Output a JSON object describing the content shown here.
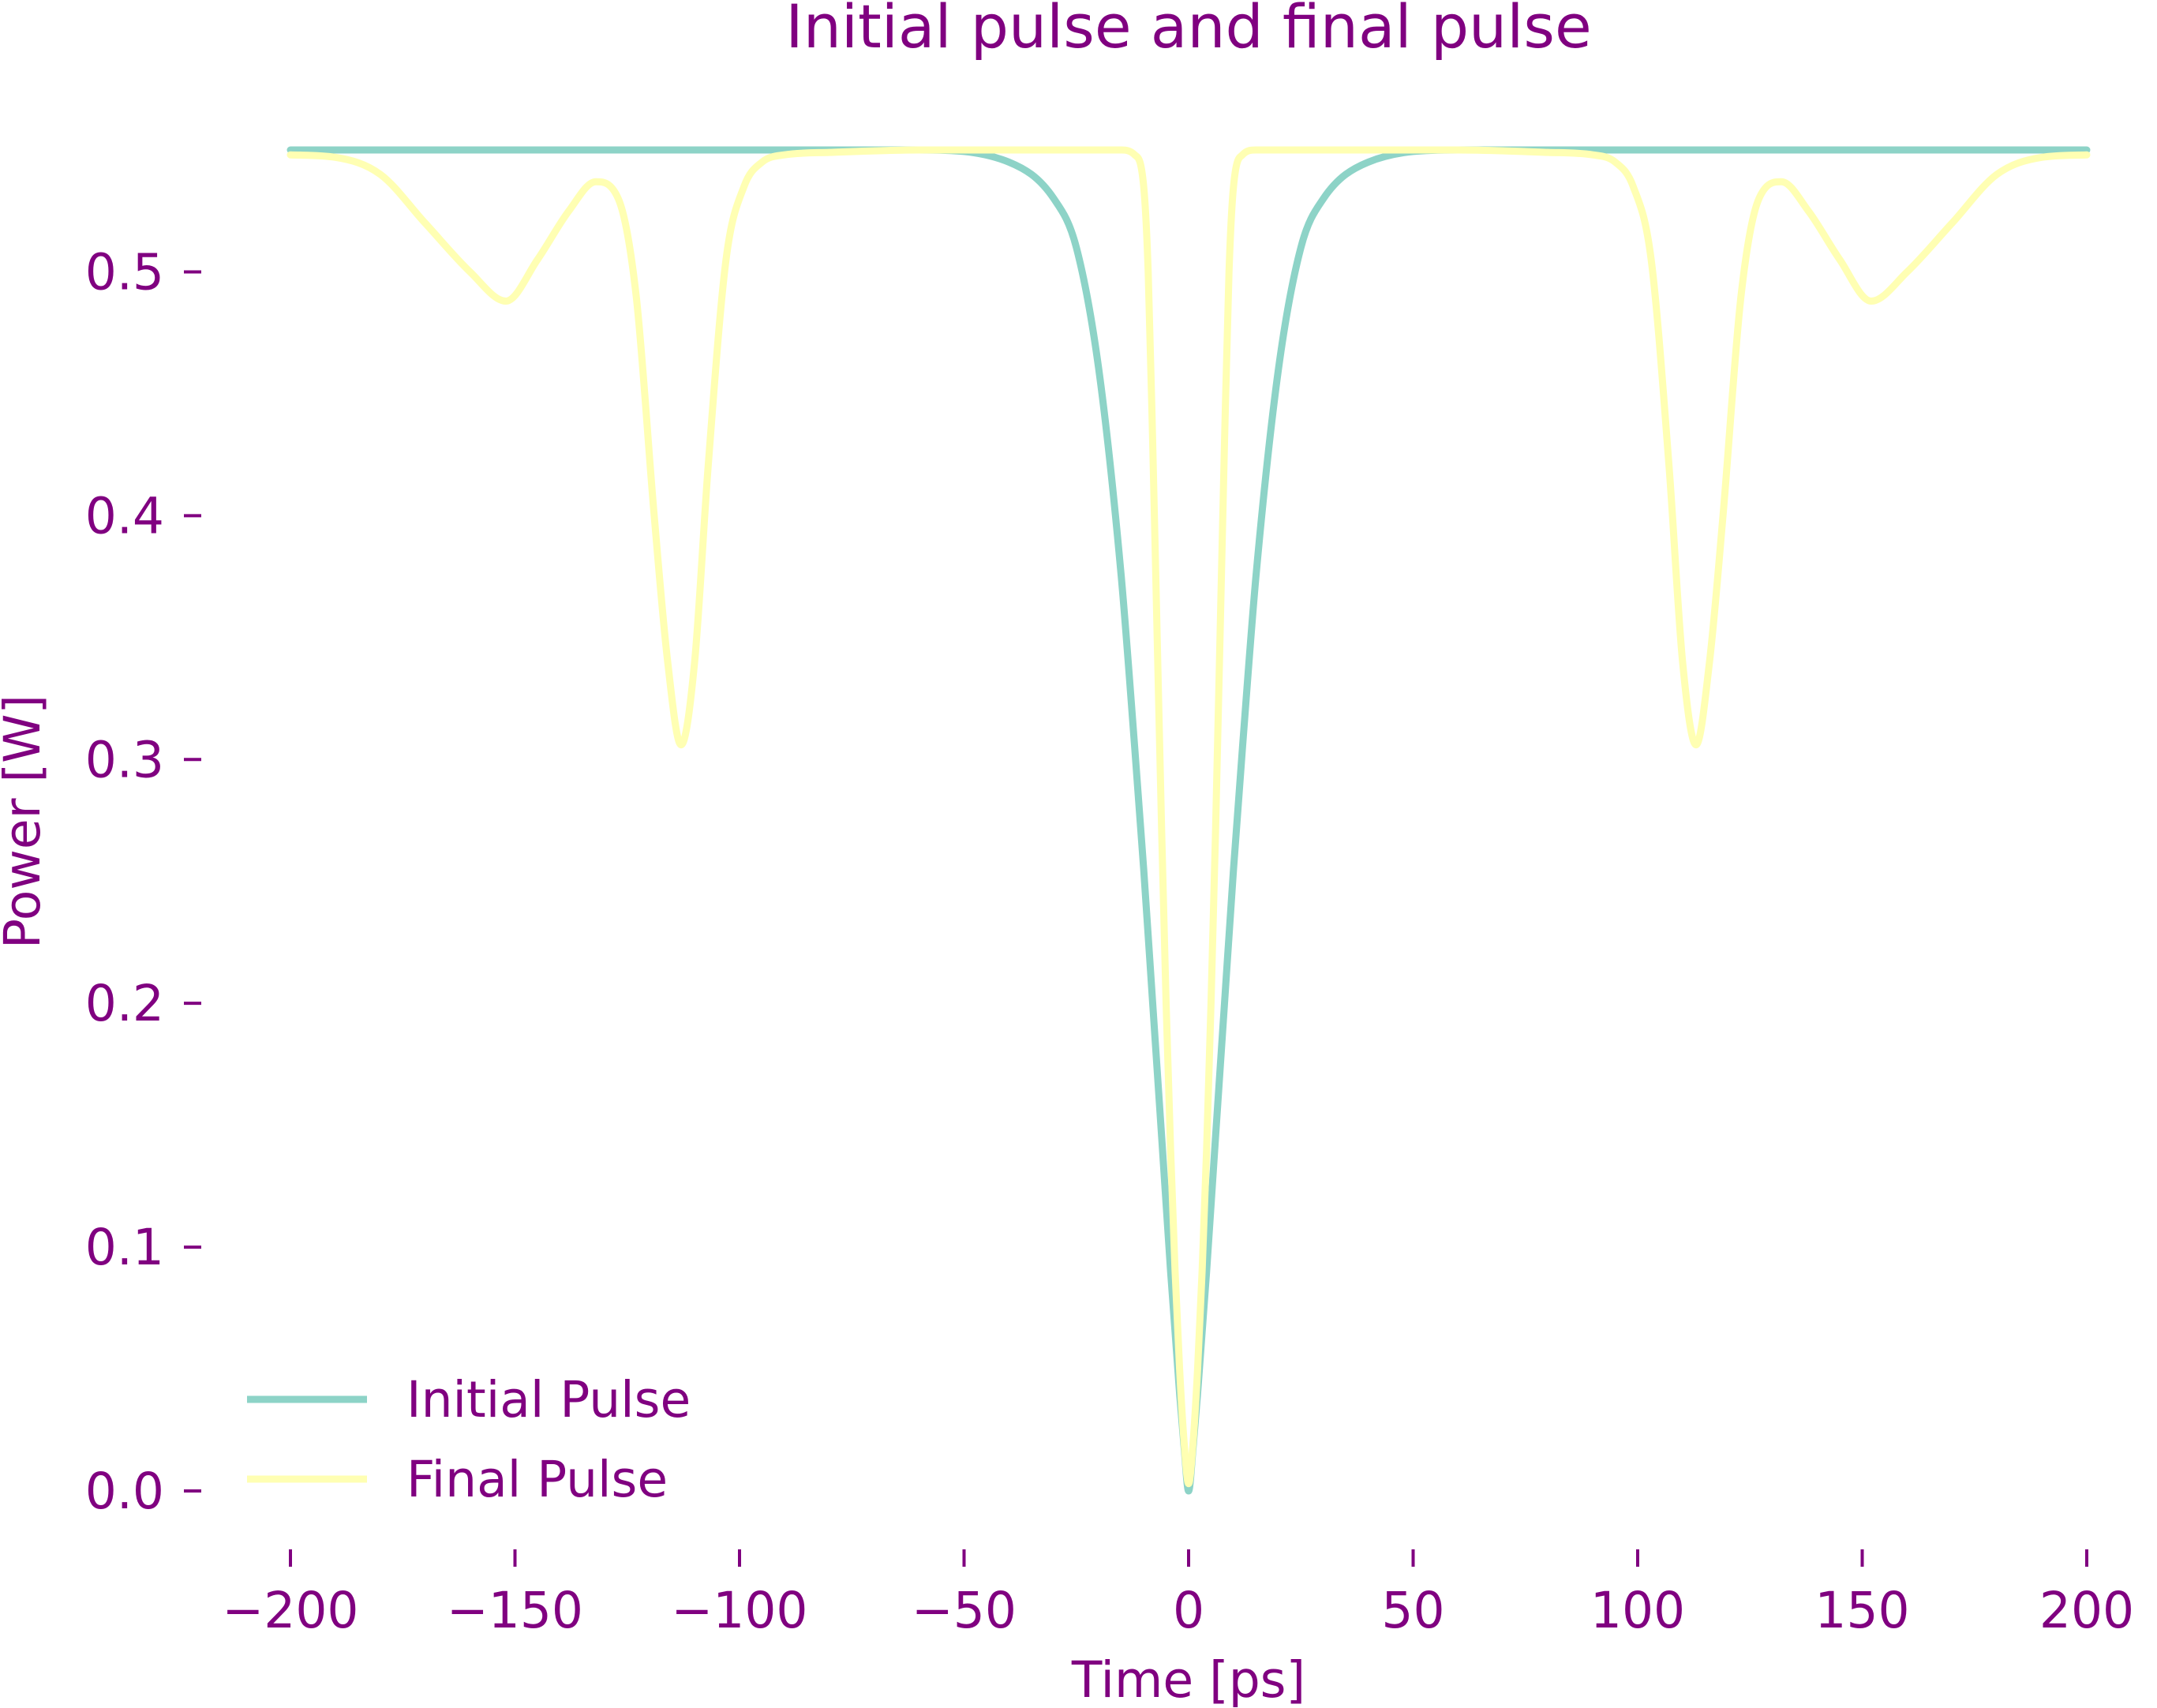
{
  "chart_data": {
    "type": "line",
    "title": "Initial pulse and final pulse",
    "xlabel": "Time [ps]",
    "ylabel": "Power [W]",
    "xlim": [
      -200,
      200
    ],
    "ylim": [
      0.0,
      0.55
    ],
    "x_ticks": [
      -200,
      -150,
      -100,
      -50,
      0,
      50,
      100,
      150,
      200
    ],
    "x_tick_labels": [
      "−200",
      "−150",
      "−100",
      "−50",
      "0",
      "50",
      "100",
      "150",
      "200"
    ],
    "y_ticks": [
      0.0,
      0.1,
      0.2,
      0.3,
      0.4,
      0.5
    ],
    "y_tick_labels": [
      "0.0",
      "0.1",
      "0.2",
      "0.3",
      "0.4",
      "0.5"
    ],
    "grid": false,
    "legend_position": "lower-left",
    "text_color": "#800080",
    "series": [
      {
        "name": "Initial Pulse",
        "color": "#8dd3c7",
        "x": [
          -200,
          -100,
          -60,
          -40,
          -30,
          -25,
          -20,
          -15,
          -12,
          -10,
          -8,
          -6,
          -4,
          -2,
          -1,
          0,
          1,
          2,
          4,
          6,
          8,
          10,
          12,
          15,
          20,
          25,
          30,
          40,
          60,
          100,
          200
        ],
        "y": [
          0.55,
          0.55,
          0.55,
          0.545,
          0.53,
          0.51,
          0.46,
          0.375,
          0.305,
          0.255,
          0.2,
          0.145,
          0.09,
          0.04,
          0.018,
          0.0,
          0.018,
          0.04,
          0.09,
          0.145,
          0.2,
          0.255,
          0.305,
          0.375,
          0.46,
          0.51,
          0.53,
          0.545,
          0.55,
          0.55,
          0.55
        ]
      },
      {
        "name": "Final Pulse",
        "color": "#ffffb3",
        "x": [
          -200,
          -190,
          -180,
          -170,
          -160,
          -152,
          -145,
          -138,
          -132,
          -127,
          -123,
          -119,
          -116,
          -113,
          -110,
          -107,
          -103,
          -99,
          -95,
          -90,
          -80,
          -60,
          -30,
          -15,
          -12,
          -10,
          -9,
          -8,
          -7,
          -6,
          -5,
          -4,
          -3,
          -2,
          -1,
          0,
          1,
          2,
          3,
          4,
          5,
          6,
          7,
          8,
          9,
          10,
          12,
          15,
          30,
          60,
          80,
          90,
          95,
          99,
          103,
          107,
          110,
          113,
          116,
          119,
          123,
          127,
          132,
          138,
          145,
          152,
          160,
          170,
          180,
          190,
          200
        ],
        "y": [
          0.548,
          0.547,
          0.54,
          0.52,
          0.5,
          0.488,
          0.505,
          0.525,
          0.537,
          0.53,
          0.49,
          0.4,
          0.34,
          0.306,
          0.34,
          0.42,
          0.505,
          0.535,
          0.545,
          0.548,
          0.549,
          0.55,
          0.55,
          0.55,
          0.548,
          0.535,
          0.5,
          0.43,
          0.35,
          0.27,
          0.2,
          0.14,
          0.09,
          0.05,
          0.02,
          0.003,
          0.02,
          0.05,
          0.09,
          0.14,
          0.2,
          0.27,
          0.35,
          0.43,
          0.5,
          0.535,
          0.548,
          0.55,
          0.55,
          0.55,
          0.549,
          0.548,
          0.545,
          0.535,
          0.505,
          0.42,
          0.34,
          0.306,
          0.34,
          0.4,
          0.49,
          0.53,
          0.537,
          0.525,
          0.505,
          0.488,
          0.5,
          0.52,
          0.54,
          0.547,
          0.548
        ]
      }
    ]
  }
}
